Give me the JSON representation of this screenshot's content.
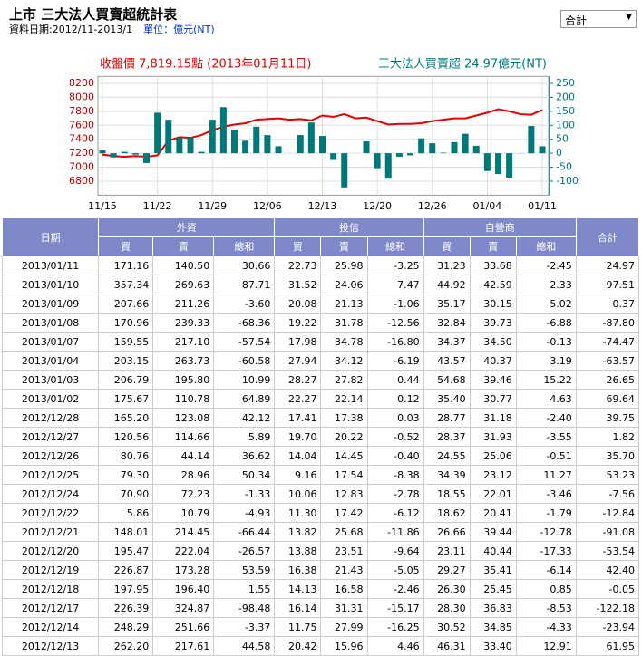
{
  "header": {
    "title": "上市 三大法人買賣超統計表",
    "date_range": "資料日期:2012/11-2013/1",
    "unit": "單位：億元(NT)",
    "select": "合計"
  },
  "chart_data": {
    "type": "combo",
    "categories": [
      "11/15",
      null,
      null,
      null,
      null,
      "11/22",
      null,
      null,
      null,
      null,
      "11/29",
      null,
      null,
      null,
      null,
      "12/06",
      null,
      null,
      null,
      null,
      "12/13",
      null,
      null,
      null,
      null,
      "12/20",
      null,
      null,
      null,
      null,
      "12/26",
      null,
      null,
      null,
      null,
      "01/04",
      null,
      null,
      null,
      null,
      "01/11"
    ],
    "series": [
      {
        "name": "收盤價 7,819.15點 (2013年01月11日)",
        "color": "#e00000",
        "kind": "line",
        "values": [
          7180,
          7160,
          7150,
          7160,
          7150,
          7170,
          7380,
          7430,
          7420,
          7460,
          7530,
          7580,
          7610,
          7630,
          7680,
          7690,
          7700,
          7680,
          7690,
          7670,
          7740,
          7720,
          7760,
          7700,
          7710,
          7660,
          7610,
          7620,
          7620,
          7630,
          7660,
          7680,
          7700,
          7700,
          7740,
          7780,
          7830,
          7800,
          7760,
          7750,
          7819.15
        ]
      },
      {
        "name": "三大法人買賣超 24.97億元(NT)",
        "color": "#007878",
        "kind": "bar",
        "axis": "y2",
        "values": [
          10,
          -15,
          5,
          -5,
          -35,
          145,
          120,
          55,
          55,
          5,
          120,
          165,
          85,
          45,
          95,
          65,
          25,
          0,
          65,
          110,
          61.95,
          -23.94,
          -122.18,
          -0.05,
          42.4,
          -53.54,
          -91.08,
          -12.84,
          -7.56,
          53.23,
          35.7,
          1.82,
          39.75,
          69.64,
          26.65,
          -63.57,
          -74.47,
          -87.8,
          0.37,
          97.51,
          24.97
        ]
      }
    ],
    "ylim": [
      6600,
      8300
    ],
    "yticks": [
      6800,
      7000,
      7200,
      7400,
      7600,
      7800,
      8000,
      8200
    ],
    "y2lim": [
      -150,
      275
    ],
    "y2ticks": [
      -100,
      -50,
      0,
      50,
      100,
      150,
      200,
      250
    ],
    "grid": true
  },
  "table": {
    "groups": [
      "日期",
      "外資",
      "投信",
      "自營商",
      "合計"
    ],
    "subheaders": [
      "買",
      "賣",
      "總和",
      "買",
      "賣",
      "總和",
      "買",
      "賣",
      "總和"
    ],
    "rows": [
      [
        "2013/01/11",
        "171.16",
        "140.50",
        "30.66",
        "22.73",
        "25.98",
        "-3.25",
        "31.23",
        "33.68",
        "-2.45",
        "24.97"
      ],
      [
        "2013/01/10",
        "357.34",
        "269.63",
        "87.71",
        "31.52",
        "24.06",
        "7.47",
        "44.92",
        "42.59",
        "2.33",
        "97.51"
      ],
      [
        "2013/01/09",
        "207.66",
        "211.26",
        "-3.60",
        "20.08",
        "21.13",
        "-1.06",
        "35.17",
        "30.15",
        "5.02",
        "0.37"
      ],
      [
        "2013/01/08",
        "170.96",
        "239.33",
        "-68.36",
        "19.22",
        "31.78",
        "-12.56",
        "32.84",
        "39.73",
        "-6.88",
        "-87.80"
      ],
      [
        "2013/01/07",
        "159.55",
        "217.10",
        "-57.54",
        "17.98",
        "34.78",
        "-16.80",
        "34.37",
        "34.50",
        "-0.13",
        "-74.47"
      ],
      [
        "2013/01/04",
        "203.15",
        "263.73",
        "-60.58",
        "27.94",
        "34.12",
        "-6.19",
        "43.57",
        "40.37",
        "3.19",
        "-63.57"
      ],
      [
        "2013/01/03",
        "206.79",
        "195.80",
        "10.99",
        "28.27",
        "27.82",
        "0.44",
        "54.68",
        "39.46",
        "15.22",
        "26.65"
      ],
      [
        "2013/01/02",
        "175.67",
        "110.78",
        "64.89",
        "22.27",
        "22.14",
        "0.12",
        "35.40",
        "30.77",
        "4.63",
        "69.64"
      ],
      [
        "2012/12/28",
        "165.20",
        "123.08",
        "42.12",
        "17.41",
        "17.38",
        "0.03",
        "28.77",
        "31.18",
        "-2.40",
        "39.75"
      ],
      [
        "2012/12/27",
        "120.56",
        "114.66",
        "5.89",
        "19.70",
        "20.22",
        "-0.52",
        "28.37",
        "31.93",
        "-3.55",
        "1.82"
      ],
      [
        "2012/12/26",
        "80.76",
        "44.14",
        "36.62",
        "14.04",
        "14.45",
        "-0.40",
        "24.55",
        "25.06",
        "-0.51",
        "35.70"
      ],
      [
        "2012/12/25",
        "79.30",
        "28.96",
        "50.34",
        "9.16",
        "17.54",
        "-8.38",
        "34.39",
        "23.12",
        "11.27",
        "53.23"
      ],
      [
        "2012/12/24",
        "70.90",
        "72.23",
        "-1.33",
        "10.06",
        "12.83",
        "-2.78",
        "18.55",
        "22.01",
        "-3.46",
        "-7.56"
      ],
      [
        "2012/12/22",
        "5.86",
        "10.79",
        "-4.93",
        "11.30",
        "17.42",
        "-6.12",
        "18.62",
        "20.41",
        "-1.79",
        "-12.84"
      ],
      [
        "2012/12/21",
        "148.01",
        "214.45",
        "-66.44",
        "13.82",
        "25.68",
        "-11.86",
        "26.66",
        "39.44",
        "-12.78",
        "-91.08"
      ],
      [
        "2012/12/20",
        "195.47",
        "222.04",
        "-26.57",
        "13.88",
        "23.51",
        "-9.64",
        "23.11",
        "40.44",
        "-17.33",
        "-53.54"
      ],
      [
        "2012/12/19",
        "226.87",
        "173.28",
        "53.59",
        "16.38",
        "21.43",
        "-5.05",
        "29.27",
        "35.41",
        "-6.14",
        "42.40"
      ],
      [
        "2012/12/18",
        "197.95",
        "196.40",
        "1.55",
        "14.13",
        "16.58",
        "-2.46",
        "26.30",
        "25.45",
        "0.85",
        "-0.05"
      ],
      [
        "2012/12/17",
        "226.39",
        "324.87",
        "-98.48",
        "16.14",
        "31.31",
        "-15.17",
        "28.30",
        "36.83",
        "-8.53",
        "-122.18"
      ],
      [
        "2012/12/14",
        "248.29",
        "251.66",
        "-3.37",
        "11.75",
        "27.99",
        "-16.25",
        "30.52",
        "34.85",
        "-4.33",
        "-23.94"
      ],
      [
        "2012/12/13",
        "262.20",
        "217.61",
        "44.58",
        "20.42",
        "15.96",
        "4.46",
        "46.31",
        "33.40",
        "12.91",
        "61.95"
      ]
    ]
  }
}
